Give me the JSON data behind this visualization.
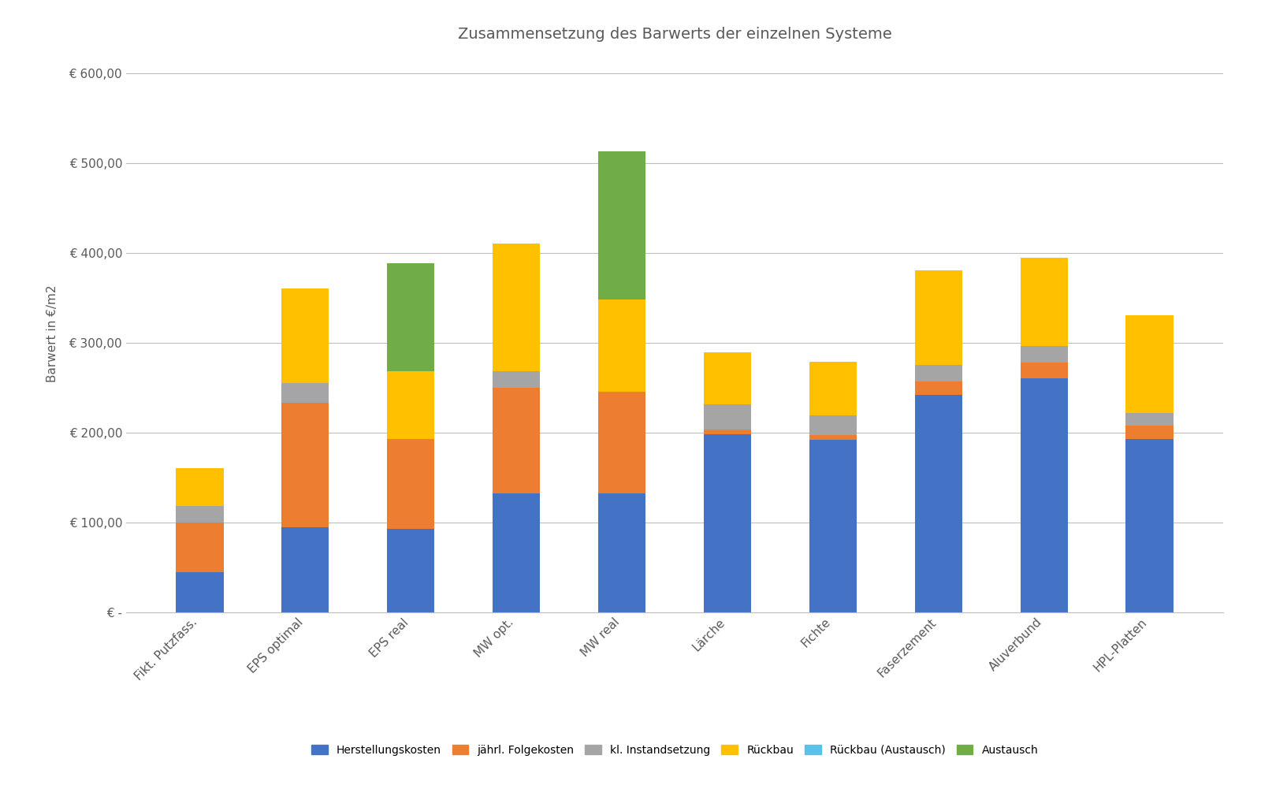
{
  "categories": [
    "Fikt. Putzfass.",
    "EPS optimal",
    "EPS real",
    "MW opt.",
    "MW real",
    "Lärche",
    "Fichte",
    "Faserzement",
    "Aluverbund",
    "HPL-Platten"
  ],
  "series_names": [
    "Herstellungskosten",
    "jährl. Folgekosten",
    "kl. Instandsetzung",
    "Rückbau",
    "Rückbau (Austausch)",
    "Austausch"
  ],
  "series_values": [
    [
      45,
      95,
      93,
      132,
      132,
      198,
      192,
      242,
      260,
      193
    ],
    [
      55,
      138,
      100,
      118,
      113,
      5,
      5,
      15,
      18,
      15
    ],
    [
      18,
      22,
      0,
      18,
      0,
      28,
      22,
      18,
      18,
      14
    ],
    [
      42,
      105,
      75,
      142,
      103,
      58,
      60,
      105,
      98,
      108
    ],
    [
      0,
      0,
      0,
      0,
      0,
      0,
      0,
      0,
      0,
      0
    ],
    [
      0,
      0,
      120,
      0,
      165,
      0,
      0,
      0,
      0,
      0
    ]
  ],
  "colors": [
    "#4472C4",
    "#ED7D31",
    "#A5A5A5",
    "#FFC000",
    "#5BC2E7",
    "#70AD47"
  ],
  "title": "Zusammensetzung des Barwerts der einzelnen Systeme",
  "ylabel": "Barwert in €/m2",
  "ylim": [
    0,
    620
  ],
  "yticks": [
    0,
    100,
    200,
    300,
    400,
    500,
    600
  ],
  "ytick_labels": [
    "€ -",
    "€ 100,00",
    "€ 200,00",
    "€ 300,00",
    "€ 400,00",
    "€ 500,00",
    "€ 600,00"
  ],
  "background_color": "#FFFFFF",
  "grid_color": "#BEBEBE",
  "title_fontsize": 14,
  "label_fontsize": 11,
  "tick_fontsize": 11,
  "bar_width": 0.45
}
